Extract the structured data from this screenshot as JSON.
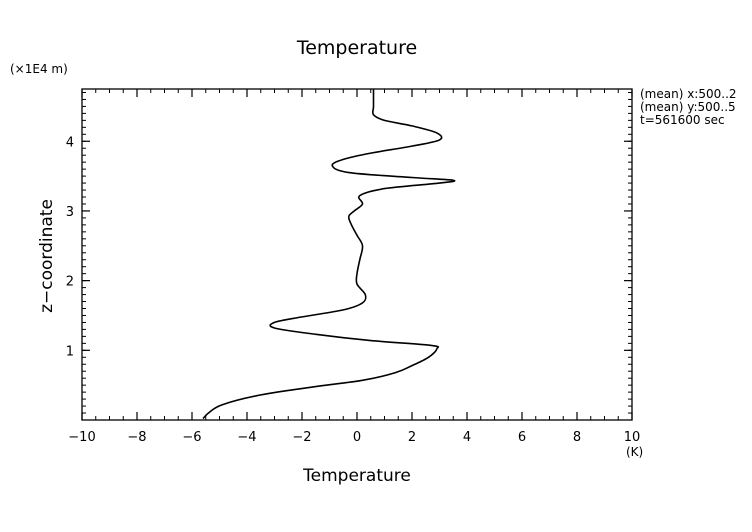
{
  "chart_data": {
    "type": "line",
    "title": "Temperature",
    "xlabel": "Temperature",
    "ylabel": "z−coordinate",
    "x_unit": "(K)",
    "y_unit": "(×1E4 m)",
    "xlim": [
      -10,
      10
    ],
    "ylim": [
      0,
      4.75
    ],
    "x_ticks": [
      -10,
      -8,
      -6,
      -4,
      -2,
      0,
      2,
      4,
      6,
      8,
      10
    ],
    "x_tick_labels": [
      "−10",
      "−8",
      "−6",
      "−4",
      "−2",
      "0",
      "2",
      "4",
      "6",
      "8",
      "10"
    ],
    "y_ticks": [
      1,
      2,
      3,
      4
    ],
    "y_tick_labels": [
      "1",
      "2",
      "3",
      "4"
    ],
    "grid": false,
    "annotations": [
      "(mean) x:500..2",
      "(mean) y:500..5",
      "t=561600 sec"
    ],
    "series": [
      {
        "color": "#000000",
        "points": [
          {
            "x": -5.6,
            "y": 0.02
          },
          {
            "x": -5.4,
            "y": 0.1
          },
          {
            "x": -4.9,
            "y": 0.22
          },
          {
            "x": -3.5,
            "y": 0.36
          },
          {
            "x": -1.5,
            "y": 0.48
          },
          {
            "x": 0.2,
            "y": 0.57
          },
          {
            "x": 1.4,
            "y": 0.68
          },
          {
            "x": 2.0,
            "y": 0.78
          },
          {
            "x": 2.6,
            "y": 0.9
          },
          {
            "x": 2.9,
            "y": 1.02
          },
          {
            "x": 2.7,
            "y": 1.07
          },
          {
            "x": 0.5,
            "y": 1.14
          },
          {
            "x": -1.5,
            "y": 1.23
          },
          {
            "x": -3.0,
            "y": 1.32
          },
          {
            "x": -3.0,
            "y": 1.4
          },
          {
            "x": -2.0,
            "y": 1.48
          },
          {
            "x": -0.5,
            "y": 1.58
          },
          {
            "x": 0.2,
            "y": 1.68
          },
          {
            "x": 0.3,
            "y": 1.8
          },
          {
            "x": 0.0,
            "y": 1.95
          },
          {
            "x": 0.0,
            "y": 2.1
          },
          {
            "x": 0.1,
            "y": 2.3
          },
          {
            "x": 0.2,
            "y": 2.5
          },
          {
            "x": 0.0,
            "y": 2.65
          },
          {
            "x": -0.2,
            "y": 2.8
          },
          {
            "x": -0.3,
            "y": 2.92
          },
          {
            "x": -0.1,
            "y": 3.0
          },
          {
            "x": 0.2,
            "y": 3.1
          },
          {
            "x": 0.1,
            "y": 3.22
          },
          {
            "x": 1.0,
            "y": 3.32
          },
          {
            "x": 3.0,
            "y": 3.4
          },
          {
            "x": 3.5,
            "y": 3.44
          },
          {
            "x": 2.0,
            "y": 3.48
          },
          {
            "x": -0.3,
            "y": 3.55
          },
          {
            "x": -0.9,
            "y": 3.65
          },
          {
            "x": -0.5,
            "y": 3.74
          },
          {
            "x": 0.5,
            "y": 3.83
          },
          {
            "x": 2.0,
            "y": 3.93
          },
          {
            "x": 3.0,
            "y": 4.02
          },
          {
            "x": 2.9,
            "y": 4.12
          },
          {
            "x": 2.0,
            "y": 4.22
          },
          {
            "x": 1.0,
            "y": 4.3
          },
          {
            "x": 0.6,
            "y": 4.38
          },
          {
            "x": 0.6,
            "y": 4.5
          },
          {
            "x": 0.6,
            "y": 4.75
          }
        ]
      }
    ]
  }
}
